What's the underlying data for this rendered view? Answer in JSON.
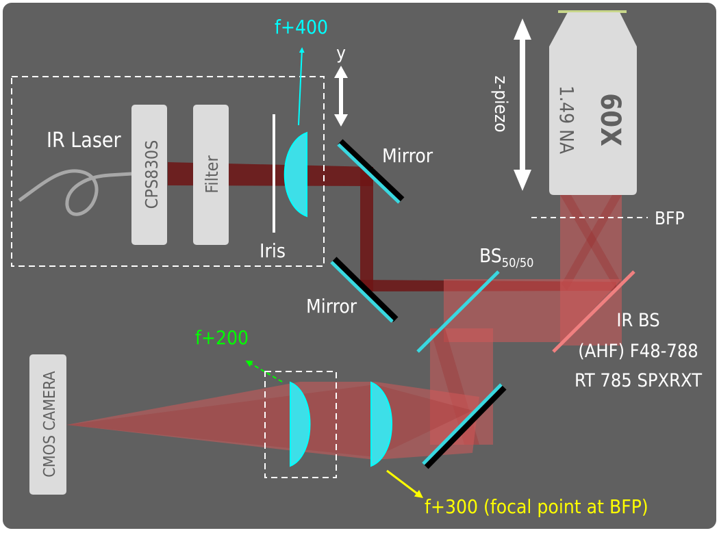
{
  "colors": {
    "background": "#606060",
    "cyan": "#00ffff",
    "green": "#00ff00",
    "yellow": "#ffff00",
    "white": "#ffffff",
    "component_fill": "#dcdcdc",
    "laser_dark": "#6e1515",
    "beam_light": "#d25a5a",
    "ir_bs": "#f08080"
  },
  "labels": {
    "ir_laser": "IR Laser",
    "cps": "CPS830S",
    "filter": "Filter",
    "iris": "Iris",
    "lens_400": "f+400",
    "y_axis": "y",
    "mirror_top": "Mirror",
    "mirror_bottom": "Mirror",
    "z_piezo": "z-piezo",
    "objective_mag": "60X",
    "objective_na": "1.49 NA",
    "bfp": "BFP",
    "bs_main": "BS",
    "bs_sub": "50/50",
    "ir_bs_line1": "IR BS",
    "ir_bs_line2": "(AHF) F48-788",
    "ir_bs_line3": "RT 785 SPXRXT",
    "lens_200": "f+200",
    "camera": "CMOS CAMERA",
    "lens_300": "f+300 (focal point at BFP)"
  },
  "icons": [
    "fiber-icon",
    "lens-icon",
    "mirror-icon",
    "double-arrow-icon",
    "beam-splitter-icon",
    "objective-icon",
    "camera-icon"
  ]
}
